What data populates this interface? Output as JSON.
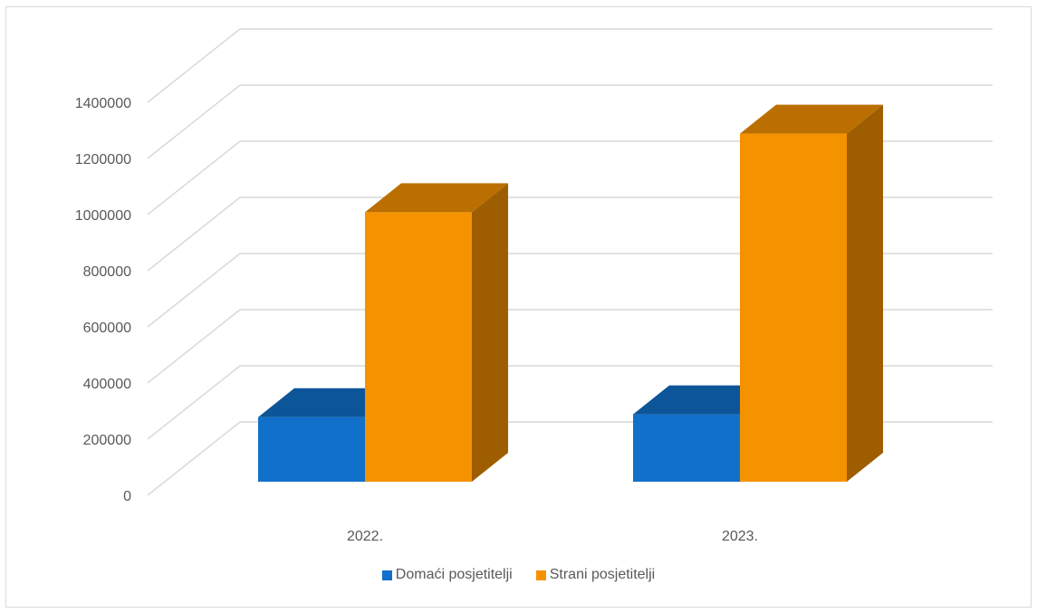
{
  "chart_data": {
    "type": "bar",
    "style": "3d-clustered-column",
    "categories": [
      "2022.",
      "2023."
    ],
    "series": [
      {
        "name": "Domaći posjetitelji",
        "values": [
          230000,
          240000
        ],
        "color": "#1170c9"
      },
      {
        "name": "Strani posjetitelji",
        "values": [
          960000,
          1240000
        ],
        "color": "#f59200"
      }
    ],
    "y_ticks": [
      "0",
      "200000",
      "400000",
      "600000",
      "800000",
      "1000000",
      "1200000",
      "1400000"
    ],
    "ylim": [
      0,
      1400000
    ],
    "grid": true,
    "legend_position": "bottom",
    "title": "",
    "xlabel": "",
    "ylabel": ""
  }
}
